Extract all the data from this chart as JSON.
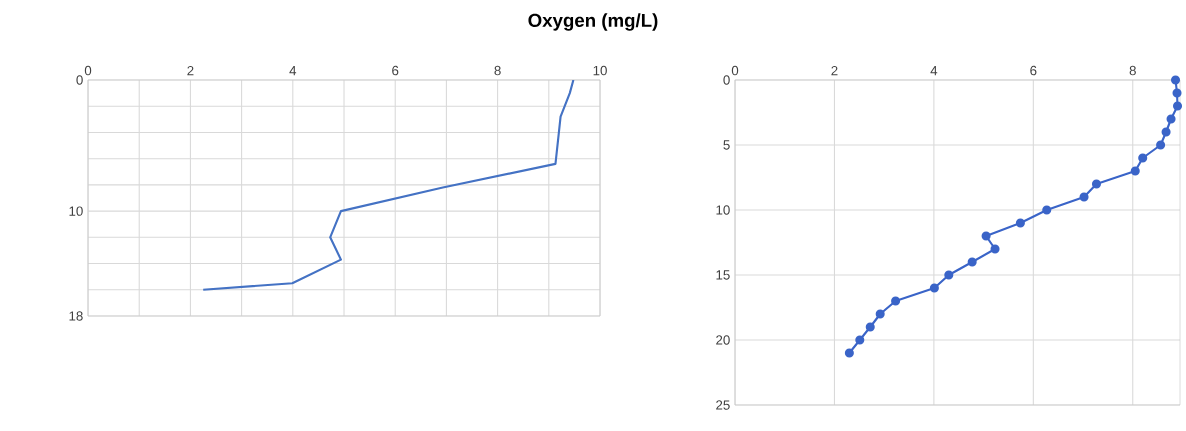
{
  "chart_data": [
    {
      "type": "line",
      "title": "Oxygen (mg/L)",
      "xlim": [
        0,
        10
      ],
      "ylim": [
        18,
        0
      ],
      "grid": true,
      "line_style": "solid",
      "xticks": [
        0,
        {
          "value": 1,
          "label": null
        },
        2,
        {
          "value": 3,
          "label": null
        },
        4,
        {
          "value": 5,
          "label": null
        },
        6,
        {
          "value": 7,
          "label": null
        },
        8,
        {
          "value": 9,
          "label": null
        },
        10
      ],
      "yticks": [
        0,
        {
          "value": 2,
          "label": null
        },
        {
          "value": 4,
          "label": null
        },
        {
          "value": 6,
          "label": null
        },
        {
          "value": 8,
          "label": null
        },
        10,
        {
          "value": 12,
          "label": null
        },
        {
          "value": 14,
          "label": null
        },
        {
          "value": 16,
          "label": null
        },
        18
      ],
      "series": [
        {
          "color": "#4472c4",
          "x": [
            9.48,
            9.41,
            9.23,
            9.18,
            9.13,
            6.93,
            4.94,
            4.73,
            4.94,
            3.99,
            2.25
          ],
          "values": [
            0,
            1,
            2.8,
            4.6,
            6.4,
            8.2,
            10,
            12,
            13.7,
            15.5,
            16
          ]
        }
      ]
    },
    {
      "type": "line",
      "xlim": [
        0,
        8.95
      ],
      "ylim": [
        25,
        0
      ],
      "grid": true,
      "marker": "circle",
      "line_style": "solid",
      "xticks": [
        0,
        2,
        4,
        6,
        8
      ],
      "yticks": [
        0,
        5,
        10,
        15,
        20,
        25
      ],
      "series": [
        {
          "color": "#3a64c8",
          "x": [
            8.86,
            8.89,
            8.9,
            8.77,
            8.67,
            8.56,
            8.2,
            8.05,
            7.27,
            7.02,
            6.27,
            5.74,
            5.05,
            5.23,
            4.77,
            4.3,
            4.01,
            3.23,
            2.92,
            2.72,
            2.51,
            2.3
          ],
          "values": [
            0,
            1,
            2,
            3,
            4,
            5,
            6,
            7,
            8,
            9,
            10,
            11,
            12,
            13,
            14,
            15,
            16,
            17,
            18,
            19,
            20,
            21
          ]
        }
      ]
    }
  ]
}
